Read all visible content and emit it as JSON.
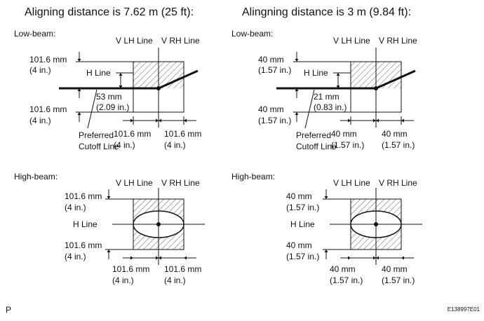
{
  "panels": [
    {
      "heading": "Aligning distance is 7.62 m (25 ft):",
      "low_beam": {
        "label": "Low-beam:",
        "v_lh": "V LH Line",
        "v_rh": "V RH Line",
        "h_line": "H Line",
        "above_mm": "101.6 mm",
        "above_in": "(4 in.)",
        "drop_mm": "53 mm",
        "drop_in": "(2.09 in.)",
        "below_mm": "101.6 mm",
        "below_in": "(4 in.)",
        "cutoff_1": "Preferred",
        "cutoff_2": "Cutoff Line",
        "left_mm": "101.6 mm",
        "left_in": "(4 in.)",
        "right_mm": "101.6 mm",
        "right_in": "(4 in.)"
      },
      "high_beam": {
        "label": "High-beam:",
        "v_lh": "V LH Line",
        "v_rh": "V RH Line",
        "h_line": "H Line",
        "above_mm": "101.6 mm",
        "above_in": "(4 in.)",
        "below_mm": "101.6 mm",
        "below_in": "(4 in.)",
        "left_mm": "101.6 mm",
        "left_in": "(4 in.)",
        "right_mm": "101.6 mm",
        "right_in": "(4 in.)"
      }
    },
    {
      "heading": "Alingning distance is 3 m (9.84 ft):",
      "low_beam": {
        "label": "Low-beam:",
        "v_lh": "V LH Line",
        "v_rh": "V RH Line",
        "h_line": "H Line",
        "above_mm": "40 mm",
        "above_in": "(1.57 in.)",
        "drop_mm": "21 mm",
        "drop_in": "(0.83 in.)",
        "below_mm": "40 mm",
        "below_in": "(1.57 in.)",
        "cutoff_1": "Preferred",
        "cutoff_2": "Cutoff Line",
        "left_mm": "40 mm",
        "left_in": "(1.57 in.)",
        "right_mm": "40 mm",
        "right_in": "(1.57 in.)"
      },
      "high_beam": {
        "label": "High-beam:",
        "v_lh": "V LH Line",
        "v_rh": "V RH Line",
        "h_line": "H Line",
        "above_mm": "40 mm",
        "above_in": "(1.57 in.)",
        "below_mm": "40 mm",
        "below_in": "(1.57 in.)",
        "left_mm": "40 mm",
        "left_in": "(1.57 in.)",
        "right_mm": "40 mm",
        "right_in": "(1.57 in.)"
      }
    }
  ],
  "footer": {
    "left": "P",
    "right": "E138997E01"
  }
}
